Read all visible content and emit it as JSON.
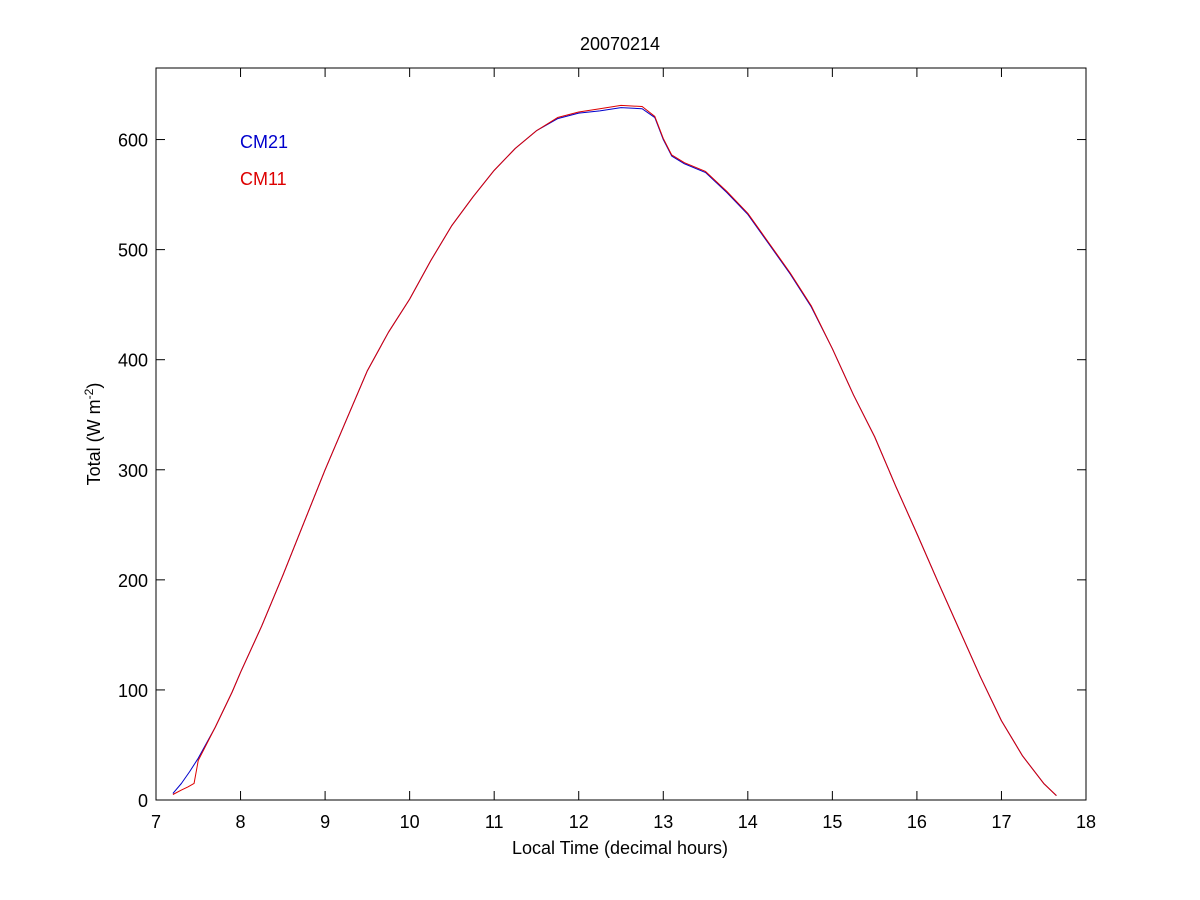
{
  "chart_data": {
    "type": "line",
    "title": "20070214",
    "xlabel": "Local Time (decimal hours)",
    "ylabel_main": "Total (W m",
    "ylabel_sup": "-2",
    "ylabel_end": ")",
    "xlim": [
      7,
      18
    ],
    "ylim": [
      0,
      665
    ],
    "xticks": [
      7,
      8,
      9,
      10,
      11,
      12,
      13,
      14,
      15,
      16,
      17,
      18
    ],
    "yticks": [
      0,
      100,
      200,
      300,
      400,
      500,
      600
    ],
    "grid": false,
    "legend_position": "top-left",
    "series": [
      {
        "name": "CM21",
        "color": "#0000cc",
        "points": [
          [
            7.2,
            6
          ],
          [
            7.3,
            15
          ],
          [
            7.4,
            26
          ],
          [
            7.5,
            38
          ],
          [
            7.6,
            52
          ],
          [
            7.7,
            66
          ],
          [
            7.8,
            82
          ],
          [
            7.9,
            98
          ],
          [
            8.0,
            116
          ],
          [
            8.25,
            158
          ],
          [
            8.5,
            204
          ],
          [
            8.75,
            252
          ],
          [
            9.0,
            300
          ],
          [
            9.25,
            345
          ],
          [
            9.5,
            390
          ],
          [
            9.75,
            425
          ],
          [
            10.0,
            455
          ],
          [
            10.25,
            490
          ],
          [
            10.5,
            522
          ],
          [
            10.75,
            548
          ],
          [
            11.0,
            572
          ],
          [
            11.25,
            592
          ],
          [
            11.5,
            608
          ],
          [
            11.75,
            619
          ],
          [
            12.0,
            624
          ],
          [
            12.25,
            626
          ],
          [
            12.5,
            629
          ],
          [
            12.75,
            628
          ],
          [
            12.9,
            620
          ],
          [
            13.0,
            600
          ],
          [
            13.1,
            585
          ],
          [
            13.25,
            578
          ],
          [
            13.5,
            570
          ],
          [
            13.75,
            552
          ],
          [
            14.0,
            532
          ],
          [
            14.25,
            505
          ],
          [
            14.5,
            478
          ],
          [
            14.75,
            448
          ],
          [
            15.0,
            410
          ],
          [
            15.25,
            368
          ],
          [
            15.5,
            330
          ],
          [
            15.75,
            285
          ],
          [
            16.0,
            242
          ],
          [
            16.25,
            198
          ],
          [
            16.5,
            155
          ],
          [
            16.75,
            112
          ],
          [
            17.0,
            72
          ],
          [
            17.25,
            40
          ],
          [
            17.5,
            15
          ],
          [
            17.65,
            4
          ]
        ]
      },
      {
        "name": "CM11",
        "color": "#dd0000",
        "points": [
          [
            7.2,
            5
          ],
          [
            7.3,
            9
          ],
          [
            7.38,
            12
          ],
          [
            7.45,
            15
          ],
          [
            7.5,
            36
          ],
          [
            7.6,
            51
          ],
          [
            7.7,
            66
          ],
          [
            7.8,
            82
          ],
          [
            7.9,
            98
          ],
          [
            8.0,
            116
          ],
          [
            8.25,
            158
          ],
          [
            8.5,
            204
          ],
          [
            8.75,
            252
          ],
          [
            9.0,
            300
          ],
          [
            9.25,
            345
          ],
          [
            9.5,
            390
          ],
          [
            9.75,
            425
          ],
          [
            10.0,
            455
          ],
          [
            10.25,
            490
          ],
          [
            10.5,
            522
          ],
          [
            10.75,
            548
          ],
          [
            11.0,
            572
          ],
          [
            11.25,
            592
          ],
          [
            11.5,
            608
          ],
          [
            11.75,
            620
          ],
          [
            12.0,
            625
          ],
          [
            12.25,
            628
          ],
          [
            12.5,
            631
          ],
          [
            12.75,
            630
          ],
          [
            12.9,
            621
          ],
          [
            13.0,
            601
          ],
          [
            13.1,
            586
          ],
          [
            13.25,
            579
          ],
          [
            13.5,
            571
          ],
          [
            13.75,
            553
          ],
          [
            14.0,
            533
          ],
          [
            14.25,
            506
          ],
          [
            14.5,
            479
          ],
          [
            14.75,
            449
          ],
          [
            15.0,
            410
          ],
          [
            15.25,
            368
          ],
          [
            15.5,
            330
          ],
          [
            15.75,
            285
          ],
          [
            16.0,
            242
          ],
          [
            16.25,
            198
          ],
          [
            16.5,
            155
          ],
          [
            16.75,
            112
          ],
          [
            17.0,
            72
          ],
          [
            17.25,
            40
          ],
          [
            17.5,
            15
          ],
          [
            17.65,
            4
          ]
        ]
      }
    ]
  }
}
